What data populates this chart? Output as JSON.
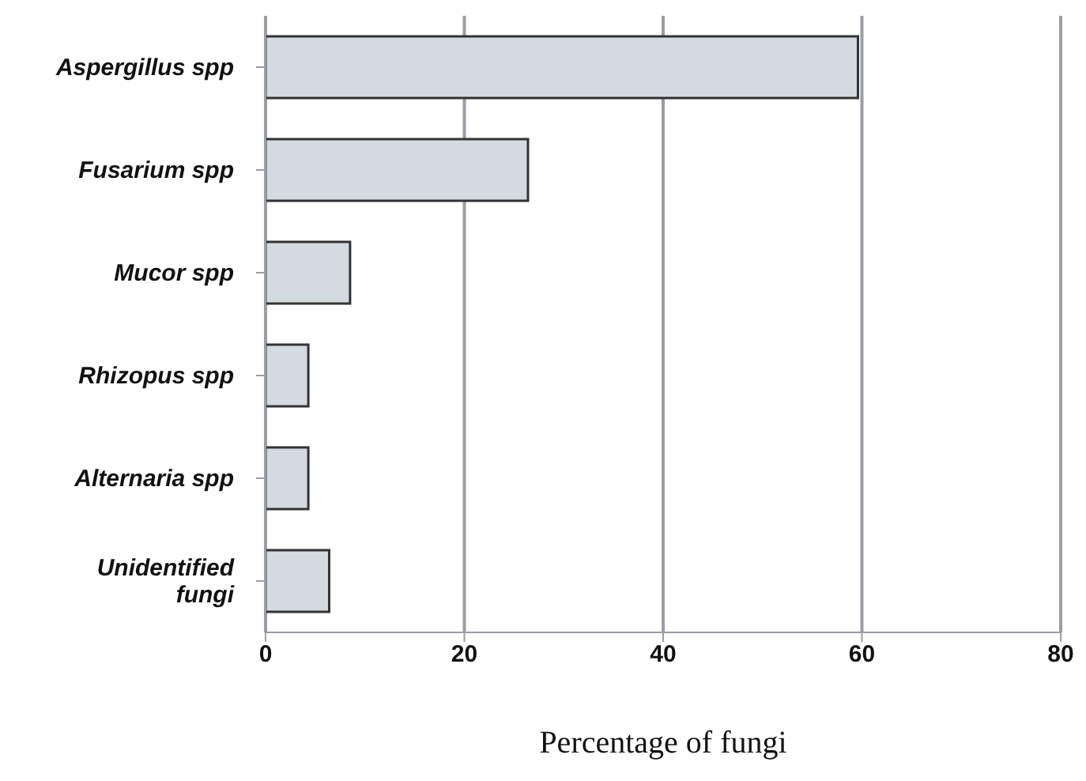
{
  "chart_data": {
    "type": "bar",
    "orientation": "horizontal",
    "xlabel": "Percentage of fungi",
    "categories": [
      "Aspergillus spp",
      "Fusarium spp",
      "Mucor spp",
      "Rhizopus spp",
      "Alternaria spp",
      "Unidentified fungi"
    ],
    "values": [
      59.6,
      26.4,
      8.5,
      4.3,
      4.3,
      6.4
    ],
    "color": "#d5d9e0",
    "xlim": [
      0,
      80
    ],
    "xticks": [
      0,
      20,
      40,
      60,
      80
    ],
    "grid": "x"
  }
}
